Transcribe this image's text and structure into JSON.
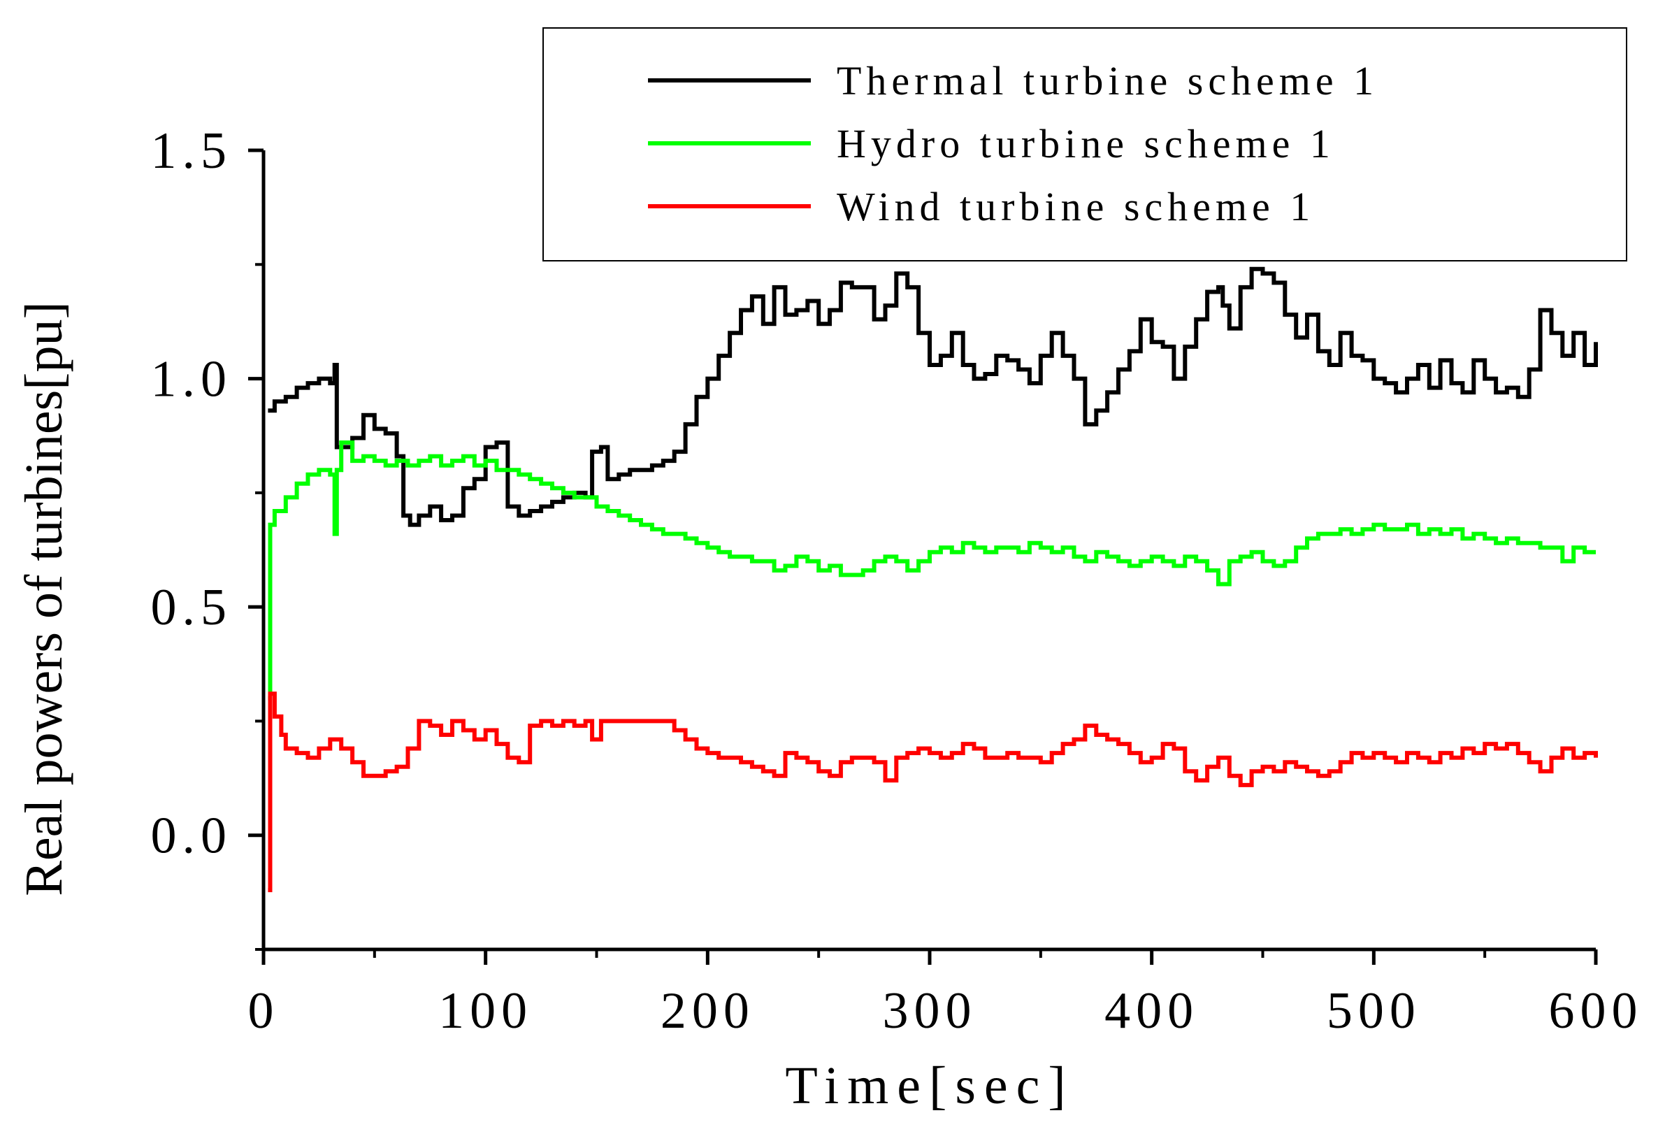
{
  "chart_data": {
    "type": "line",
    "title": "",
    "xlabel": "Time[sec]",
    "ylabel": "Real powers of turbines[pu]",
    "xlim": [
      0,
      600
    ],
    "ylim": [
      -0.25,
      1.5
    ],
    "xticks": [
      0,
      100,
      200,
      300,
      400,
      500,
      600
    ],
    "yticks": [
      0.0,
      0.5,
      1.0,
      1.5
    ],
    "xtick_labels": [
      "0",
      "100",
      "200",
      "300",
      "400",
      "500",
      "600"
    ],
    "ytick_labels": [
      "0.0",
      "0.5",
      "1.0",
      "1.5"
    ],
    "grid": false,
    "legend_position": "top-right",
    "line_style": "step",
    "series": [
      {
        "name": "Thermal turbine scheme 1",
        "color": "#000000",
        "x": [
          2,
          5,
          10,
          15,
          20,
          25,
          30,
          32,
          33,
          40,
          45,
          50,
          55,
          60,
          63,
          66,
          70,
          75,
          80,
          85,
          90,
          95,
          100,
          105,
          110,
          115,
          120,
          125,
          130,
          135,
          140,
          145,
          148,
          152,
          155,
          160,
          165,
          170,
          175,
          180,
          185,
          190,
          195,
          200,
          205,
          210,
          215,
          220,
          225,
          230,
          235,
          240,
          245,
          250,
          255,
          260,
          265,
          270,
          275,
          280,
          285,
          290,
          295,
          300,
          305,
          310,
          315,
          320,
          325,
          330,
          335,
          340,
          345,
          350,
          355,
          360,
          365,
          370,
          375,
          380,
          385,
          390,
          395,
          400,
          405,
          410,
          415,
          420,
          425,
          430,
          432,
          435,
          440,
          445,
          450,
          455,
          460,
          465,
          470,
          475,
          480,
          485,
          490,
          495,
          500,
          505,
          510,
          515,
          520,
          525,
          530,
          535,
          540,
          545,
          550,
          555,
          560,
          565,
          570,
          575,
          580,
          585,
          590,
          595,
          600
        ],
        "values": [
          0.93,
          0.95,
          0.96,
          0.98,
          0.99,
          1.0,
          0.99,
          1.03,
          0.85,
          0.87,
          0.92,
          0.89,
          0.88,
          0.83,
          0.7,
          0.68,
          0.7,
          0.72,
          0.69,
          0.7,
          0.76,
          0.78,
          0.85,
          0.86,
          0.72,
          0.7,
          0.71,
          0.72,
          0.73,
          0.74,
          0.75,
          0.74,
          0.84,
          0.85,
          0.78,
          0.79,
          0.8,
          0.8,
          0.81,
          0.82,
          0.84,
          0.9,
          0.96,
          1.0,
          1.05,
          1.1,
          1.15,
          1.18,
          1.12,
          1.2,
          1.14,
          1.15,
          1.17,
          1.12,
          1.15,
          1.21,
          1.2,
          1.2,
          1.13,
          1.16,
          1.23,
          1.2,
          1.1,
          1.03,
          1.05,
          1.1,
          1.03,
          1.0,
          1.01,
          1.05,
          1.04,
          1.02,
          0.99,
          1.05,
          1.1,
          1.05,
          1.0,
          0.9,
          0.93,
          0.97,
          1.02,
          1.06,
          1.13,
          1.08,
          1.07,
          1.0,
          1.07,
          1.13,
          1.19,
          1.2,
          1.16,
          1.11,
          1.2,
          1.24,
          1.23,
          1.21,
          1.14,
          1.09,
          1.14,
          1.06,
          1.03,
          1.1,
          1.05,
          1.04,
          1.0,
          0.99,
          0.97,
          1.0,
          1.03,
          0.98,
          1.04,
          0.99,
          0.97,
          1.04,
          1.0,
          0.97,
          0.98,
          0.96,
          1.02,
          1.15,
          1.1,
          1.05,
          1.1,
          1.03,
          1.08
        ]
      },
      {
        "name": "Hydro turbine scheme 1",
        "color": "#00ff00",
        "x": [
          2,
          3,
          5,
          10,
          15,
          20,
          25,
          30,
          32,
          33,
          35,
          40,
          45,
          50,
          55,
          60,
          65,
          70,
          75,
          80,
          85,
          90,
          95,
          100,
          105,
          110,
          115,
          120,
          125,
          130,
          135,
          140,
          145,
          150,
          155,
          160,
          165,
          170,
          175,
          180,
          185,
          190,
          195,
          200,
          205,
          210,
          215,
          220,
          225,
          230,
          235,
          240,
          245,
          250,
          255,
          260,
          265,
          270,
          275,
          280,
          285,
          290,
          295,
          300,
          305,
          310,
          315,
          320,
          325,
          330,
          335,
          340,
          345,
          350,
          355,
          360,
          365,
          370,
          375,
          380,
          385,
          390,
          395,
          400,
          405,
          410,
          415,
          420,
          425,
          430,
          435,
          440,
          445,
          450,
          455,
          460,
          465,
          470,
          475,
          480,
          485,
          490,
          495,
          500,
          505,
          510,
          515,
          520,
          525,
          530,
          535,
          540,
          545,
          550,
          555,
          560,
          565,
          570,
          575,
          580,
          585,
          590,
          595,
          600
        ],
        "values": [
          0.3,
          0.68,
          0.71,
          0.74,
          0.77,
          0.79,
          0.8,
          0.79,
          0.66,
          0.8,
          0.86,
          0.82,
          0.83,
          0.82,
          0.81,
          0.82,
          0.81,
          0.82,
          0.83,
          0.81,
          0.82,
          0.83,
          0.81,
          0.82,
          0.8,
          0.8,
          0.79,
          0.78,
          0.77,
          0.76,
          0.75,
          0.74,
          0.74,
          0.72,
          0.71,
          0.7,
          0.69,
          0.68,
          0.67,
          0.66,
          0.66,
          0.65,
          0.64,
          0.63,
          0.62,
          0.61,
          0.61,
          0.6,
          0.6,
          0.58,
          0.59,
          0.61,
          0.6,
          0.58,
          0.59,
          0.57,
          0.57,
          0.58,
          0.6,
          0.61,
          0.6,
          0.58,
          0.6,
          0.62,
          0.63,
          0.62,
          0.64,
          0.63,
          0.62,
          0.63,
          0.63,
          0.62,
          0.64,
          0.63,
          0.62,
          0.63,
          0.61,
          0.6,
          0.62,
          0.61,
          0.6,
          0.59,
          0.6,
          0.61,
          0.6,
          0.59,
          0.61,
          0.6,
          0.58,
          0.55,
          0.6,
          0.61,
          0.62,
          0.6,
          0.59,
          0.6,
          0.63,
          0.65,
          0.66,
          0.66,
          0.67,
          0.66,
          0.67,
          0.68,
          0.67,
          0.67,
          0.68,
          0.66,
          0.67,
          0.66,
          0.67,
          0.65,
          0.66,
          0.65,
          0.64,
          0.65,
          0.64,
          0.64,
          0.63,
          0.63,
          0.6,
          0.63,
          0.62,
          0.62
        ]
      },
      {
        "name": "Wind turbine scheme 1",
        "color": "#ff0000",
        "x": [
          2,
          3,
          5,
          8,
          10,
          15,
          20,
          25,
          30,
          35,
          40,
          45,
          50,
          55,
          60,
          65,
          70,
          75,
          80,
          85,
          90,
          95,
          100,
          105,
          110,
          115,
          120,
          125,
          130,
          135,
          140,
          145,
          148,
          152,
          155,
          160,
          165,
          170,
          175,
          180,
          185,
          190,
          195,
          200,
          205,
          210,
          215,
          220,
          225,
          230,
          235,
          240,
          245,
          250,
          255,
          260,
          265,
          270,
          275,
          280,
          285,
          290,
          295,
          300,
          305,
          310,
          315,
          320,
          325,
          330,
          335,
          340,
          345,
          350,
          355,
          360,
          365,
          370,
          375,
          380,
          385,
          390,
          395,
          400,
          405,
          410,
          415,
          420,
          425,
          430,
          435,
          440,
          445,
          450,
          455,
          460,
          465,
          470,
          475,
          480,
          485,
          490,
          495,
          500,
          505,
          510,
          515,
          520,
          525,
          530,
          535,
          540,
          545,
          550,
          555,
          560,
          565,
          570,
          575,
          580,
          585,
          590,
          595,
          600
        ],
        "values": [
          -0.12,
          0.31,
          0.26,
          0.22,
          0.19,
          0.18,
          0.17,
          0.19,
          0.21,
          0.19,
          0.16,
          0.13,
          0.13,
          0.14,
          0.15,
          0.19,
          0.25,
          0.24,
          0.22,
          0.25,
          0.23,
          0.21,
          0.23,
          0.2,
          0.17,
          0.16,
          0.24,
          0.25,
          0.24,
          0.25,
          0.24,
          0.25,
          0.21,
          0.25,
          0.25,
          0.25,
          0.25,
          0.25,
          0.25,
          0.25,
          0.23,
          0.21,
          0.19,
          0.18,
          0.17,
          0.17,
          0.16,
          0.15,
          0.14,
          0.13,
          0.18,
          0.17,
          0.16,
          0.14,
          0.13,
          0.16,
          0.17,
          0.17,
          0.16,
          0.12,
          0.17,
          0.18,
          0.19,
          0.18,
          0.17,
          0.18,
          0.2,
          0.19,
          0.17,
          0.17,
          0.18,
          0.17,
          0.17,
          0.16,
          0.18,
          0.2,
          0.21,
          0.24,
          0.22,
          0.21,
          0.2,
          0.18,
          0.16,
          0.17,
          0.2,
          0.19,
          0.14,
          0.12,
          0.15,
          0.17,
          0.13,
          0.11,
          0.14,
          0.15,
          0.14,
          0.16,
          0.15,
          0.14,
          0.13,
          0.14,
          0.16,
          0.18,
          0.17,
          0.18,
          0.17,
          0.16,
          0.18,
          0.17,
          0.16,
          0.18,
          0.17,
          0.19,
          0.18,
          0.2,
          0.19,
          0.2,
          0.18,
          0.16,
          0.14,
          0.17,
          0.19,
          0.17,
          0.18,
          0.17
        ]
      }
    ]
  }
}
